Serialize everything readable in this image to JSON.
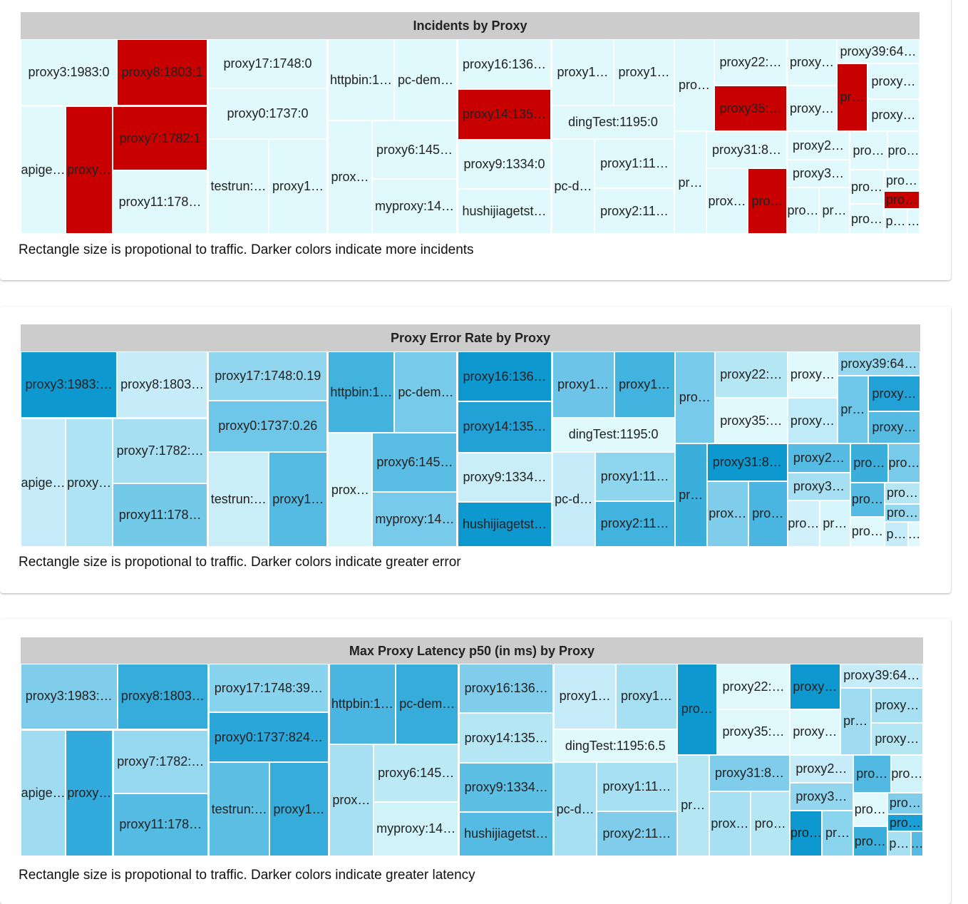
{
  "chart_data": [
    {
      "type": "treemap",
      "title": "Incidents by Proxy",
      "caption": "Rectangle size is propotional to traffic. Darker colors indicate more incidents",
      "cells": [
        {
          "label": "proxy3:1983:0",
          "color": "#dff9fc"
        },
        {
          "label": "proxy8:1803:1",
          "color": "#c80000"
        },
        {
          "label": "apige…",
          "color": "#dff9fc"
        },
        {
          "label": "proxy…",
          "color": "#c80000"
        },
        {
          "label": "proxy7:1782:1",
          "color": "#c80000"
        },
        {
          "label": "proxy11:178…",
          "color": "#dff9fc"
        },
        {
          "label": "proxy17:1748:0",
          "color": "#dff9fc"
        },
        {
          "label": "proxy0:1737:0",
          "color": "#dff9fc"
        },
        {
          "label": "testrun:…",
          "color": "#dff9fc"
        },
        {
          "label": "proxy1…",
          "color": "#dff9fc"
        },
        {
          "label": "httpbin:1…",
          "color": "#dff9fc"
        },
        {
          "label": "pc-dem…",
          "color": "#dff9fc"
        },
        {
          "label": "prox…",
          "color": "#dff9fc"
        },
        {
          "label": "proxy6:145…",
          "color": "#dff9fc"
        },
        {
          "label": "myproxy:14…",
          "color": "#dff9fc"
        },
        {
          "label": "proxy16:136…",
          "color": "#dff9fc"
        },
        {
          "label": "proxy14:135…",
          "color": "#c80000"
        },
        {
          "label": "proxy9:1334:0",
          "color": "#dff9fc"
        },
        {
          "label": "hushijiagetst…",
          "color": "#dff9fc"
        },
        {
          "label": "proxy1…",
          "color": "#dff9fc"
        },
        {
          "label": "proxy1…",
          "color": "#dff9fc"
        },
        {
          "label": "dingTest:1195:0",
          "color": "#dff9fc"
        },
        {
          "label": "pc-d…",
          "color": "#dff9fc"
        },
        {
          "label": "proxy1:11…",
          "color": "#dff9fc"
        },
        {
          "label": "proxy2:11…",
          "color": "#dff9fc"
        },
        {
          "label": "pro…",
          "color": "#dff9fc"
        },
        {
          "label": "proxy22:…",
          "color": "#dff9fc"
        },
        {
          "label": "proxy35:…",
          "color": "#c80000"
        },
        {
          "label": "proxy…",
          "color": "#dff9fc"
        },
        {
          "label": "proxy…",
          "color": "#dff9fc"
        },
        {
          "label": "proxy39:64…",
          "color": "#dff9fc"
        },
        {
          "label": "pr…",
          "color": "#c80000"
        },
        {
          "label": "proxy…",
          "color": "#dff9fc"
        },
        {
          "label": "proxy…",
          "color": "#dff9fc"
        },
        {
          "label": "pr…",
          "color": "#dff9fc"
        },
        {
          "label": "proxy31:8…",
          "color": "#dff9fc"
        },
        {
          "label": "prox…",
          "color": "#dff9fc"
        },
        {
          "label": "pro…",
          "color": "#c80000"
        },
        {
          "label": "proxy2…",
          "color": "#dff9fc"
        },
        {
          "label": "proxy3…",
          "color": "#dff9fc"
        },
        {
          "label": "pro…",
          "color": "#dff9fc"
        },
        {
          "label": "pr…",
          "color": "#dff9fc"
        },
        {
          "label": "pro…",
          "color": "#dff9fc"
        },
        {
          "label": "pro…",
          "color": "#dff9fc"
        },
        {
          "label": "pro…",
          "color": "#dff9fc"
        },
        {
          "label": "pro…",
          "color": "#dff9fc"
        },
        {
          "label": "pro…",
          "color": "#c80000"
        },
        {
          "label": "pro…",
          "color": "#dff9fc"
        },
        {
          "label": "p…",
          "color": "#dff9fc"
        },
        {
          "label": "…",
          "color": "#dff9fc"
        }
      ]
    },
    {
      "type": "treemap",
      "title": "Proxy Error Rate by Proxy",
      "caption": "Rectangle size is propotional to traffic. Darker colors indicate greater error",
      "cells": [
        {
          "label": "proxy3:1983:…",
          "color": "#0e98d0"
        },
        {
          "label": "proxy8:1803…",
          "color": "#c5ecf8"
        },
        {
          "label": "apige…",
          "color": "#c5ecf8"
        },
        {
          "label": "proxy…",
          "color": "#ade3f3"
        },
        {
          "label": "proxy7:1782:…",
          "color": "#a6dff1"
        },
        {
          "label": "proxy11:178…",
          "color": "#72c9e8"
        },
        {
          "label": "proxy17:1748:0.19",
          "color": "#91d6ee"
        },
        {
          "label": "proxy0:1737:0.26",
          "color": "#6ec6e8"
        },
        {
          "label": "testrun:…",
          "color": "#c9eef8"
        },
        {
          "label": "proxy1…",
          "color": "#56bbe3"
        },
        {
          "label": "httpbin:1…",
          "color": "#42b2df"
        },
        {
          "label": "pc-dem…",
          "color": "#77cae9"
        },
        {
          "label": "prox…",
          "color": "#d7f6fc"
        },
        {
          "label": "proxy6:145…",
          "color": "#5abde4"
        },
        {
          "label": "myproxy:14…",
          "color": "#77cae9"
        },
        {
          "label": "proxy16:136…",
          "color": "#0e98d0"
        },
        {
          "label": "proxy14:135…",
          "color": "#22a1d7"
        },
        {
          "label": "proxy9:1334…",
          "color": "#c9eef8"
        },
        {
          "label": "hushijiagetst…",
          "color": "#0e98d0"
        },
        {
          "label": "proxy1…",
          "color": "#6cc5e8"
        },
        {
          "label": "proxy1…",
          "color": "#42b2df"
        },
        {
          "label": "dingTest:1195:0",
          "color": "#dff9fc"
        },
        {
          "label": "pc-d…",
          "color": "#c5ecf8"
        },
        {
          "label": "proxy1:11…",
          "color": "#8ed5ee"
        },
        {
          "label": "proxy2:11…",
          "color": "#42b2df"
        },
        {
          "label": "pro…",
          "color": "#77cae9"
        },
        {
          "label": "proxy22:…",
          "color": "#b5e6f4"
        },
        {
          "label": "proxy35:…",
          "color": "#dff9fc"
        },
        {
          "label": "proxy…",
          "color": "#dff9fc"
        },
        {
          "label": "proxy…",
          "color": "#c0ebf8"
        },
        {
          "label": "proxy39:64…",
          "color": "#96d8ef"
        },
        {
          "label": "pr…",
          "color": "#6ec6e8"
        },
        {
          "label": "proxy…",
          "color": "#22a1d7"
        },
        {
          "label": "proxy…",
          "color": "#56bbe3"
        },
        {
          "label": "pr…",
          "color": "#3aafdc"
        },
        {
          "label": "proxy31:8…",
          "color": "#0e98d0"
        },
        {
          "label": "prox…",
          "color": "#7fcdea"
        },
        {
          "label": "pro…",
          "color": "#4ab5e0"
        },
        {
          "label": "proxy2…",
          "color": "#56bbe3"
        },
        {
          "label": "proxy3…",
          "color": "#a6dff1"
        },
        {
          "label": "pro…",
          "color": "#d0f1fa"
        },
        {
          "label": "pr…",
          "color": "#d7f6fc"
        },
        {
          "label": "pro…",
          "color": "#3aafdc"
        },
        {
          "label": "pro…",
          "color": "#77cae9"
        },
        {
          "label": "pro…",
          "color": "#56bbe3"
        },
        {
          "label": "pro…",
          "color": "#b5e6f4"
        },
        {
          "label": "pro…",
          "color": "#96d8ef"
        },
        {
          "label": "pro…",
          "color": "#dff9fc"
        },
        {
          "label": "p…",
          "color": "#c5ecf8"
        },
        {
          "label": "…",
          "color": "#dff9fc"
        }
      ]
    },
    {
      "type": "treemap",
      "title": "Max Proxy Latency p50 (in ms) by Proxy",
      "caption": "Rectangle size is propotional to traffic. Darker colors indicate greater latency",
      "cells": [
        {
          "label": "proxy3:1983:…",
          "color": "#7fcdea"
        },
        {
          "label": "proxy8:1803…",
          "color": "#36acdb"
        },
        {
          "label": "apige…",
          "color": "#9fdcf1"
        },
        {
          "label": "proxy…",
          "color": "#32aadb"
        },
        {
          "label": "proxy7:1782:…",
          "color": "#96d8ef"
        },
        {
          "label": "proxy11:178…",
          "color": "#56bbe3"
        },
        {
          "label": "proxy17:1748:39…",
          "color": "#88d3ed"
        },
        {
          "label": "proxy0:1737:824…",
          "color": "#2aa6d9"
        },
        {
          "label": "testrun:…",
          "color": "#5ebfe4"
        },
        {
          "label": "proxy1…",
          "color": "#36acdb"
        },
        {
          "label": "httpbin:1…",
          "color": "#4ab5e0"
        },
        {
          "label": "pc-dem…",
          "color": "#36acdb"
        },
        {
          "label": "prox…",
          "color": "#a6e0f2"
        },
        {
          "label": "proxy6:145…",
          "color": "#bbe9f6"
        },
        {
          "label": "myproxy:14…",
          "color": "#d0f3fa"
        },
        {
          "label": "proxy16:136…",
          "color": "#7fcdea"
        },
        {
          "label": "proxy14:135…",
          "color": "#b5e6f4"
        },
        {
          "label": "proxy9:1334…",
          "color": "#5ebfe4"
        },
        {
          "label": "hushijiagetst…",
          "color": "#56bbe3"
        },
        {
          "label": "proxy1…",
          "color": "#c5ecf8"
        },
        {
          "label": "proxy1…",
          "color": "#a6e0f2"
        },
        {
          "label": "dingTest:1195:6.5",
          "color": "#dff9fc"
        },
        {
          "label": "pc-d…",
          "color": "#a6e0f2"
        },
        {
          "label": "proxy1:11…",
          "color": "#a6e0f2"
        },
        {
          "label": "proxy2:11…",
          "color": "#7fcdea"
        },
        {
          "label": "pro…",
          "color": "#0e98d0"
        },
        {
          "label": "proxy22:…",
          "color": "#dff9fc"
        },
        {
          "label": "proxy35:…",
          "color": "#dff9fc"
        },
        {
          "label": "proxy…",
          "color": "#0e98d0"
        },
        {
          "label": "proxy…",
          "color": "#dff9fc"
        },
        {
          "label": "proxy39:64…",
          "color": "#c5ecf8"
        },
        {
          "label": "pr…",
          "color": "#9fdcf1"
        },
        {
          "label": "proxy…",
          "color": "#a6e0f2"
        },
        {
          "label": "proxy…",
          "color": "#b5e6f4"
        },
        {
          "label": "pr…",
          "color": "#b5e6f4"
        },
        {
          "label": "proxy31:8…",
          "color": "#7fcdea"
        },
        {
          "label": "prox…",
          "color": "#a6e0f2"
        },
        {
          "label": "pro…",
          "color": "#b5e6f4"
        },
        {
          "label": "proxy2…",
          "color": "#c5ecf8"
        },
        {
          "label": "proxy3…",
          "color": "#91d6ee"
        },
        {
          "label": "pro…",
          "color": "#0e98d0"
        },
        {
          "label": "pr…",
          "color": "#8ad4ee"
        },
        {
          "label": "pro…",
          "color": "#52b9e2"
        },
        {
          "label": "pro…",
          "color": "#d0f3fa"
        },
        {
          "label": "pro…",
          "color": "#dff9fc"
        },
        {
          "label": "pro…",
          "color": "#7fcdea"
        },
        {
          "label": "pro…",
          "color": "#1a9fd6"
        },
        {
          "label": "pro…",
          "color": "#3aafdc"
        },
        {
          "label": "p…",
          "color": "#a6e0f2"
        },
        {
          "label": "…",
          "color": "#56bbe3"
        }
      ]
    }
  ]
}
